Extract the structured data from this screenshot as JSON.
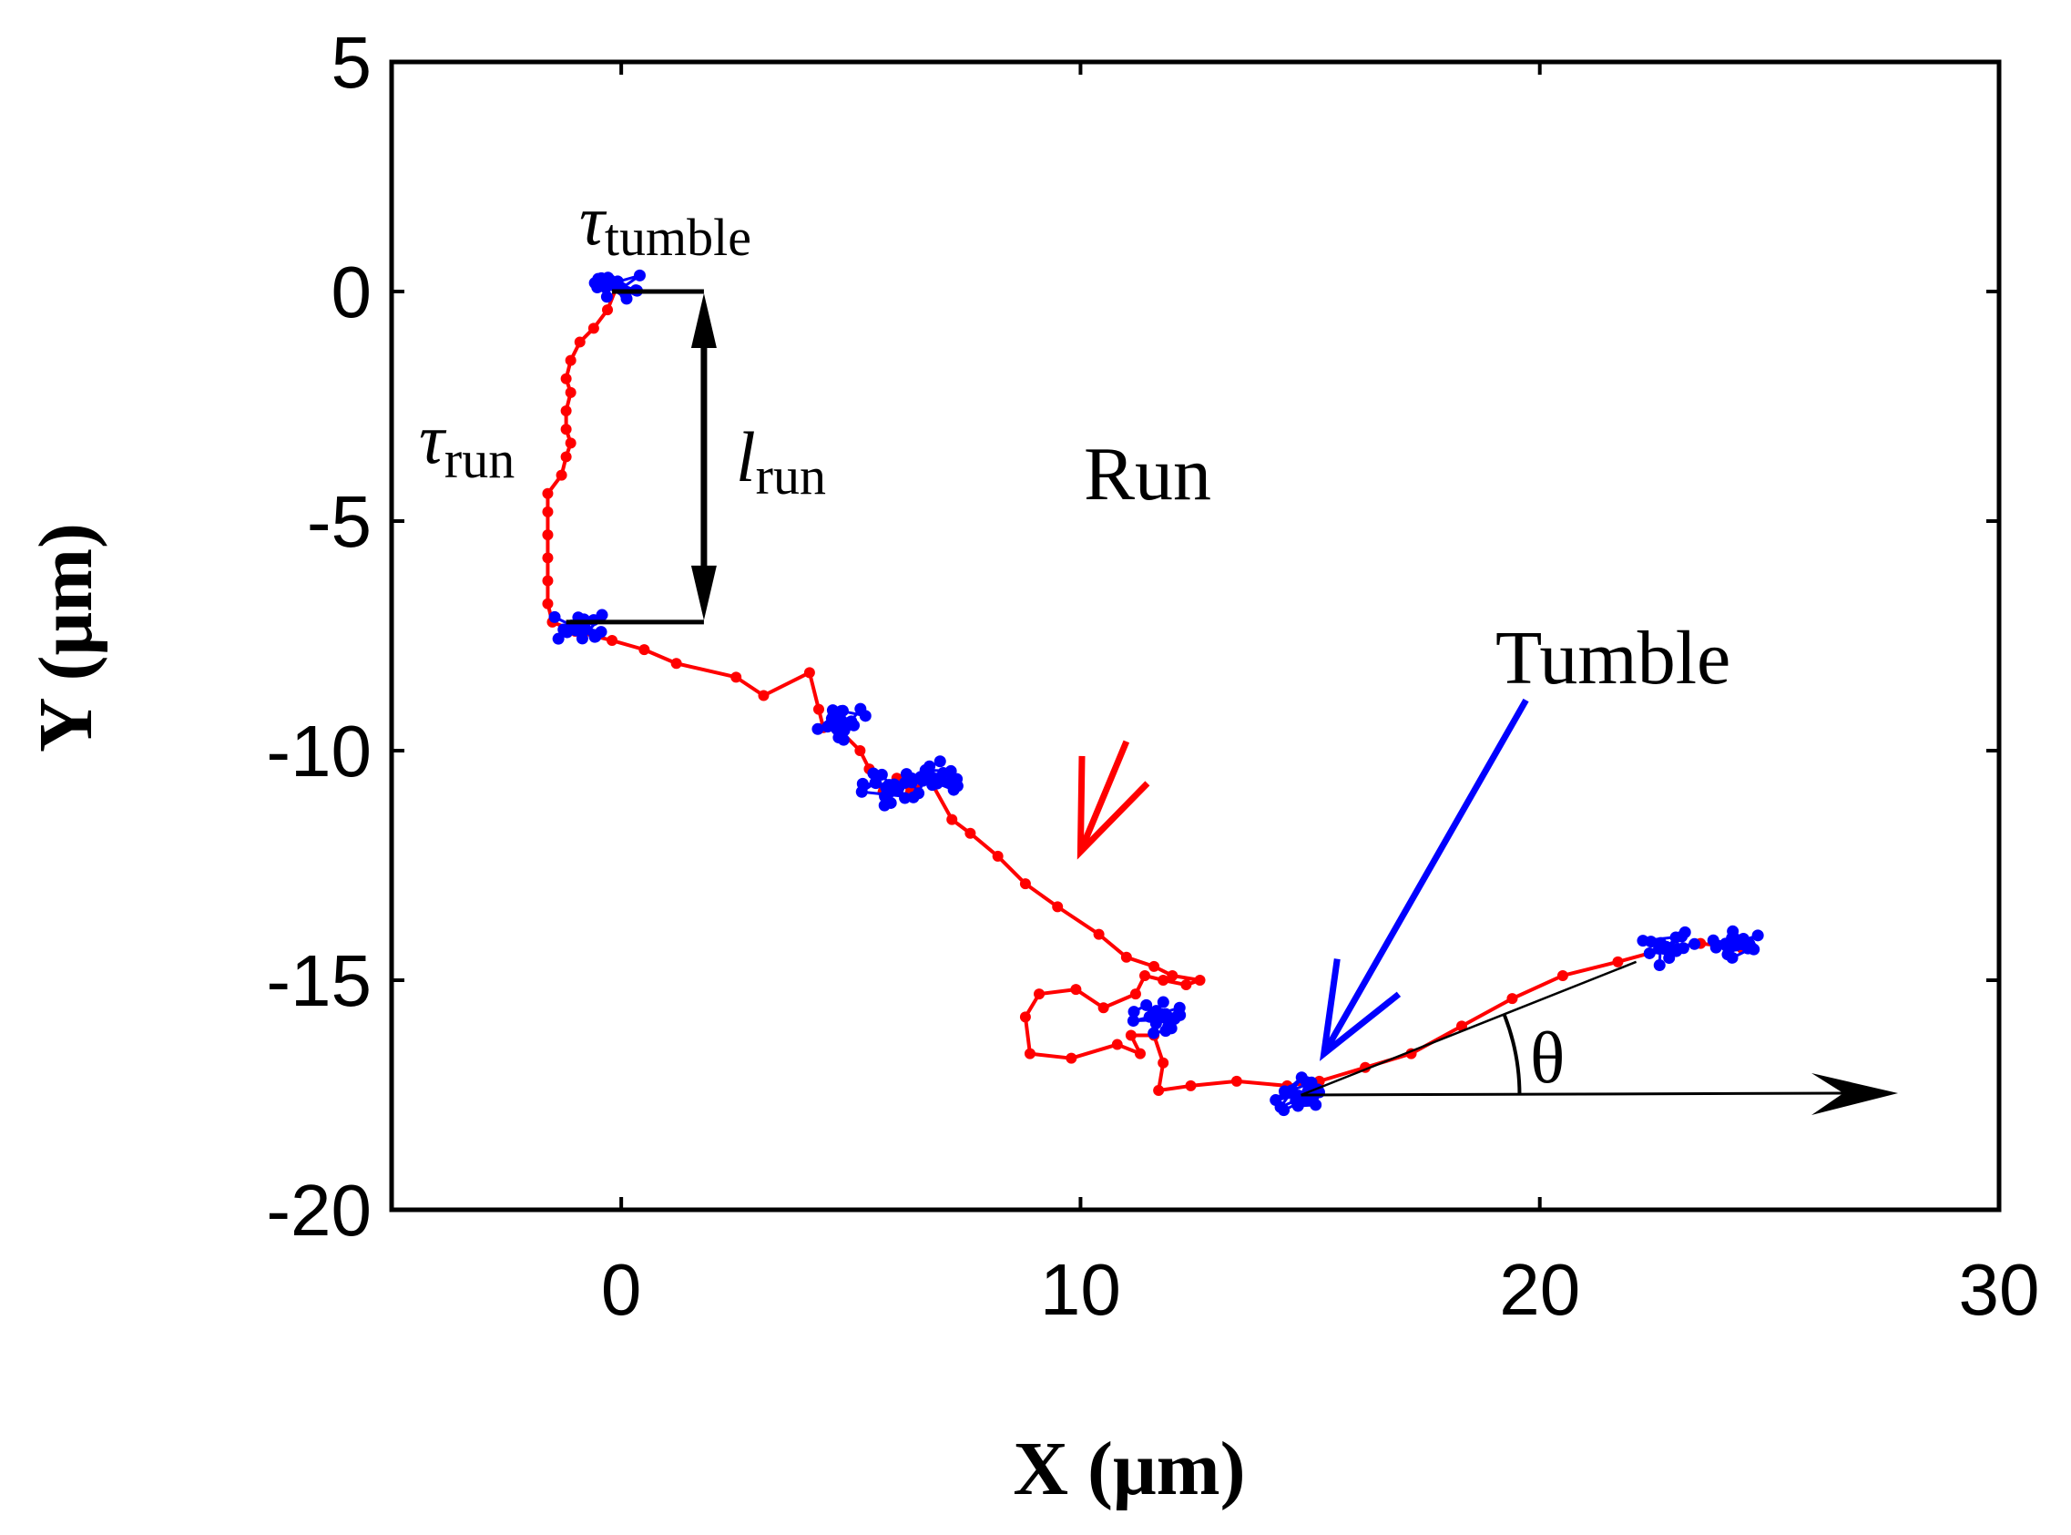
{
  "chart_data": {
    "type": "scatter",
    "title": "",
    "xlabel": "X (μm)",
    "ylabel": "Y (μm)",
    "xlim": [
      -5,
      30
    ],
    "ylim": [
      -20,
      5
    ],
    "xticks": [
      0,
      10,
      20,
      30
    ],
    "xtick_labels": [
      "0",
      "10",
      "20",
      "30"
    ],
    "yticks": [
      5,
      0,
      -5,
      -10,
      -15,
      -20
    ],
    "ytick_labels": [
      "5",
      "0",
      "-5",
      "-10",
      "-15",
      "-20"
    ],
    "grid": false,
    "series": [
      {
        "name": "Run",
        "color": "#ff0000",
        "mode": "line+markers",
        "points": [
          [
            -0.1,
            0.1
          ],
          [
            -0.3,
            -0.4
          ],
          [
            -0.6,
            -0.8
          ],
          [
            -0.9,
            -1.1
          ],
          [
            -1.1,
            -1.5
          ],
          [
            -1.2,
            -1.9
          ],
          [
            -1.1,
            -2.2
          ],
          [
            -1.2,
            -2.6
          ],
          [
            -1.2,
            -3.0
          ],
          [
            -1.1,
            -3.3
          ],
          [
            -1.2,
            -3.6
          ],
          [
            -1.3,
            -4.0
          ],
          [
            -1.6,
            -4.4
          ],
          [
            -1.6,
            -4.8
          ],
          [
            -1.6,
            -5.3
          ],
          [
            -1.6,
            -5.8
          ],
          [
            -1.6,
            -6.3
          ],
          [
            -1.6,
            -6.8
          ],
          [
            -1.5,
            -7.2
          ],
          [
            -1.0,
            -7.4
          ],
          [
            -0.2,
            -7.6
          ],
          [
            0.5,
            -7.8
          ],
          [
            1.2,
            -8.1
          ],
          [
            2.5,
            -8.4
          ],
          [
            3.1,
            -8.8
          ],
          [
            4.1,
            -8.3
          ],
          [
            4.3,
            -9.1
          ],
          [
            4.4,
            -9.5
          ],
          [
            4.8,
            -9.6
          ],
          [
            5.2,
            -10.0
          ],
          [
            5.4,
            -10.4
          ],
          [
            5.7,
            -10.9
          ],
          [
            6.0,
            -10.6
          ],
          [
            6.3,
            -10.9
          ],
          [
            6.7,
            -10.6
          ],
          [
            7.2,
            -11.5
          ],
          [
            7.6,
            -11.8
          ],
          [
            8.2,
            -12.3
          ],
          [
            8.8,
            -12.9
          ],
          [
            9.5,
            -13.4
          ],
          [
            10.4,
            -14.0
          ],
          [
            11.0,
            -14.5
          ],
          [
            11.6,
            -14.7
          ],
          [
            12.0,
            -14.9
          ],
          [
            12.6,
            -15.0
          ],
          [
            12.3,
            -15.1
          ],
          [
            11.8,
            -15.0
          ],
          [
            11.4,
            -14.9
          ],
          [
            11.2,
            -15.3
          ],
          [
            10.5,
            -15.6
          ],
          [
            9.9,
            -15.2
          ],
          [
            9.1,
            -15.3
          ],
          [
            8.8,
            -15.8
          ],
          [
            8.9,
            -16.6
          ],
          [
            9.8,
            -16.7
          ],
          [
            10.8,
            -16.4
          ],
          [
            11.3,
            -16.6
          ],
          [
            11.1,
            -16.2
          ],
          [
            11.6,
            -16.2
          ],
          [
            11.8,
            -16.8
          ],
          [
            11.7,
            -17.4
          ],
          [
            12.4,
            -17.3
          ],
          [
            13.4,
            -17.2
          ],
          [
            14.5,
            -17.3
          ],
          [
            15.2,
            -17.2
          ],
          [
            16.2,
            -16.9
          ],
          [
            17.2,
            -16.6
          ],
          [
            18.3,
            -16.0
          ],
          [
            19.4,
            -15.4
          ],
          [
            20.5,
            -14.9
          ],
          [
            21.7,
            -14.6
          ],
          [
            22.8,
            -14.3
          ],
          [
            23.5,
            -14.2
          ],
          [
            24.4,
            -14.3
          ]
        ]
      },
      {
        "name": "Tumble",
        "color": "#0000ff",
        "mode": "markers",
        "clusters": [
          [
            -0.2,
            0.2
          ],
          [
            4.8,
            -9.4
          ],
          [
            5.8,
            -10.8
          ],
          [
            6.8,
            -10.6
          ],
          [
            11.8,
            -15.8
          ],
          [
            -0.9,
            -7.3
          ],
          [
            14.8,
            -17.5
          ],
          [
            22.8,
            -14.3
          ],
          [
            24.4,
            -14.2
          ]
        ]
      }
    ],
    "annotations": {
      "tau_tumble_symbol": "τ",
      "tau_tumble_sub": "tumble",
      "tau_run_symbol": "τ",
      "tau_run_sub": "run",
      "l_run_symbol": "l",
      "l_run_sub": "run",
      "run_label": "Run",
      "tumble_label": "Tumble",
      "theta_label": "θ",
      "l_run_y_range": [
        0,
        -7.2
      ],
      "l_run_x": 1.8,
      "theta_vertex": [
        14.8,
        -17.5
      ],
      "theta_ref_end_x": 27.8,
      "theta_dir_end": [
        22.1,
        -14.6
      ],
      "run_arrow_from": [
        11.0,
        -9.8
      ],
      "run_arrow_to": [
        10.0,
        -12.2
      ],
      "tumble_arrow_from": [
        19.7,
        -8.9
      ],
      "tumble_arrow_to": [
        15.3,
        -16.6
      ]
    },
    "colors": {
      "run": "#ff0000",
      "tumble": "#0000ff",
      "axis": "#000000"
    }
  }
}
